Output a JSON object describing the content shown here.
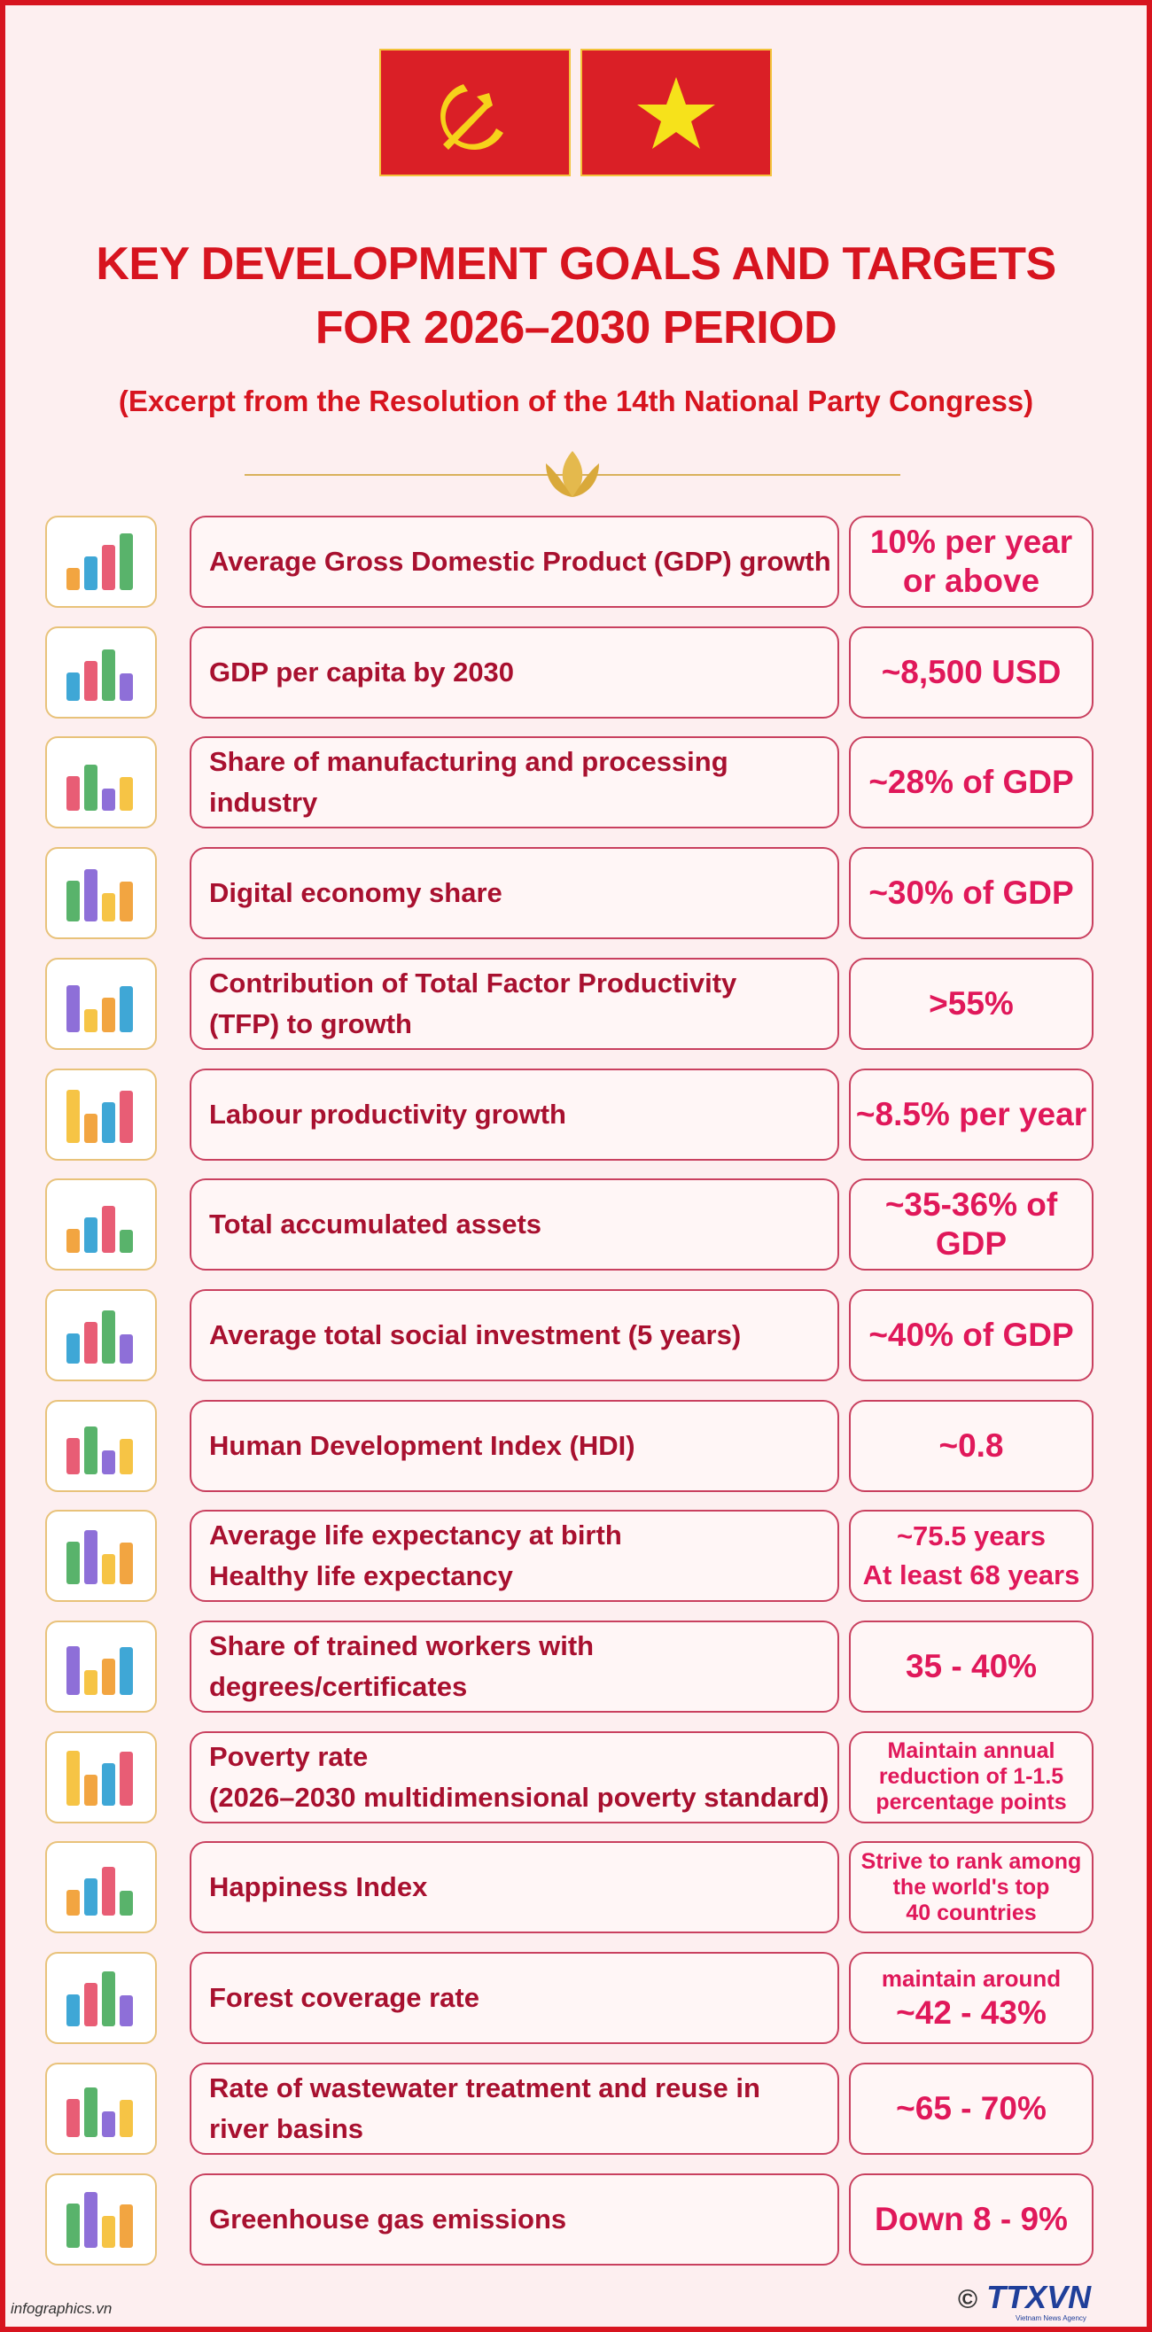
{
  "header": {
    "title_lines": [
      "KEY DEVELOPMENT GOALS AND TARGETS",
      "FOR 2026–2030 PERIOD"
    ],
    "subtitle": "(Excerpt from the Resolution of the 14th National Party Congress)"
  },
  "rows": [
    {
      "goal": [
        "Average Gross Domestic Product (GDP) growth"
      ],
      "target": [
        "10% per year",
        "or above"
      ]
    },
    {
      "goal": [
        "GDP per capita by 2030"
      ],
      "target": [
        "~8,500 USD"
      ]
    },
    {
      "goal": [
        "Share of manufacturing and processing industry"
      ],
      "target": [
        "~28% of GDP"
      ]
    },
    {
      "goal": [
        "Digital economy share"
      ],
      "target": [
        "~30% of GDP"
      ]
    },
    {
      "goal": [
        "Contribution of Total Factor Productivity",
        "(TFP) to growth"
      ],
      "target": [
        ">55%"
      ]
    },
    {
      "goal": [
        "Labour productivity growth"
      ],
      "target": [
        "~8.5% per year"
      ]
    },
    {
      "goal": [
        "Total accumulated assets"
      ],
      "target": [
        "~35-36% of GDP"
      ]
    },
    {
      "goal": [
        "Average total social investment (5 years)"
      ],
      "target": [
        "~40% of GDP"
      ]
    },
    {
      "goal": [
        "Human Development Index (HDI)"
      ],
      "target": [
        "~0.8"
      ]
    },
    {
      "goal": [
        "Average life expectancy at birth",
        "Healthy life expectancy"
      ],
      "target": [
        "~75.5 years",
        "At least 68 years"
      ]
    },
    {
      "goal": [
        "Share of trained workers with degrees/certificates"
      ],
      "target": [
        "35 - 40%"
      ]
    },
    {
      "goal": [
        "Poverty rate",
        "(2026–2030 multidimensional poverty standard)"
      ],
      "target": [
        "Maintain annual",
        "reduction of 1-1.5",
        "percentage points"
      ]
    },
    {
      "goal": [
        "Happiness Index"
      ],
      "target": [
        "Strive to rank among",
        "the world's top",
        "40 countries"
      ]
    },
    {
      "goal": [
        "Forest coverage rate"
      ],
      "target": [
        "maintain around",
        "~42 - 43%"
      ]
    },
    {
      "goal": [
        "Rate of wastewater treatment and reuse in",
        "river basins"
      ],
      "target": [
        "~65 - 70%"
      ]
    },
    {
      "goal": [
        "Greenhouse gas emissions"
      ],
      "target": [
        "Down 8 - 9%"
      ]
    }
  ],
  "footer": {
    "source": "infographics.vn",
    "copyright": "©",
    "logo": "TTXVN",
    "agency": "Vietnam News Agency"
  }
}
